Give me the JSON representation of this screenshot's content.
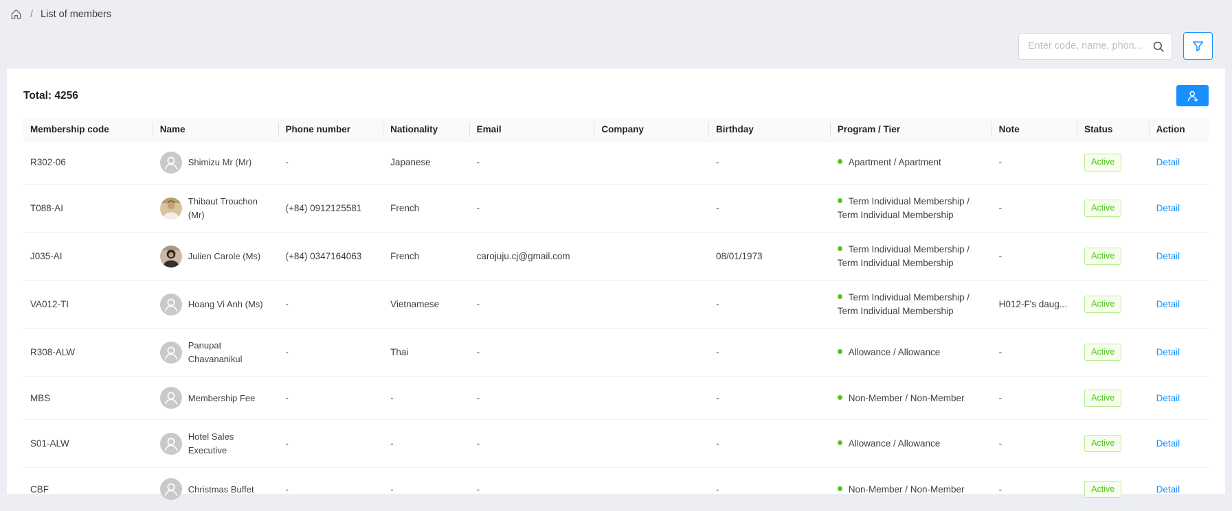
{
  "breadcrumb": {
    "separator": "/",
    "current": "List of members"
  },
  "toolbar": {
    "search_placeholder": "Enter code, name, phon...",
    "search_icon": "magnifier",
    "filter_icon": "funnel"
  },
  "summary": {
    "total": "Total: 4256"
  },
  "actions": {
    "add_member_icon": "user-plus"
  },
  "colors": {
    "accent_blue": "#1890ff",
    "status_green": "#52c41a",
    "tag_background": "#f6ffed",
    "tag_border": "#b7eb8f",
    "page_background": "#eceef3"
  },
  "table": {
    "columns": [
      "Membership code",
      "Name",
      "Phone number",
      "Nationality",
      "Email",
      "Company",
      "Birthday",
      "Program / Tier",
      "Note",
      "Status",
      "Action"
    ],
    "rows": [
      {
        "code": "R302-06",
        "avatar": "placeholder",
        "name": "Shimizu Mr (Mr)",
        "phone": "-",
        "nationality": "Japanese",
        "email": "-",
        "company": "",
        "birthday": "-",
        "program": "Apartment / Apartment",
        "note": "-",
        "status": "Active",
        "action": "Detail"
      },
      {
        "code": "T088-AI",
        "avatar": "photo-man",
        "name": "Thibaut Trouchon (Mr)",
        "phone": "(+84) 0912125581",
        "nationality": "French",
        "email": "-",
        "company": "",
        "birthday": "-",
        "program": "Term Individual Membership / Term Individual Membership",
        "note": "-",
        "status": "Active",
        "action": "Detail"
      },
      {
        "code": "J035-AI",
        "avatar": "photo-woman",
        "name": "Julien Carole (Ms)",
        "phone": "(+84) 0347164063",
        "nationality": "French",
        "email": "carojuju.cj@gmail.com",
        "company": "",
        "birthday": "08/01/1973",
        "program": "Term Individual Membership / Term Individual Membership",
        "note": "-",
        "status": "Active",
        "action": "Detail"
      },
      {
        "code": "VA012-TI",
        "avatar": "placeholder",
        "name": "Hoang Vi Anh (Ms)",
        "phone": "-",
        "nationality": "Vietnamese",
        "email": "-",
        "company": "",
        "birthday": "-",
        "program": "Term Individual Membership / Term Individual Membership",
        "note": "H012-F's daug...",
        "status": "Active",
        "action": "Detail"
      },
      {
        "code": "R308-ALW",
        "avatar": "placeholder",
        "name": "Panupat Chavananikul",
        "phone": "-",
        "nationality": "Thai",
        "email": "-",
        "company": "",
        "birthday": "-",
        "program": "Allowance / Allowance",
        "note": "-",
        "status": "Active",
        "action": "Detail"
      },
      {
        "code": "MBS",
        "avatar": "placeholder",
        "name": "Membership Fee",
        "phone": "-",
        "nationality": "-",
        "email": "-",
        "company": "",
        "birthday": "-",
        "program": "Non-Member / Non-Member",
        "note": "-",
        "status": "Active",
        "action": "Detail"
      },
      {
        "code": "S01-ALW",
        "avatar": "placeholder",
        "name": "Hotel Sales Executive",
        "phone": "-",
        "nationality": "-",
        "email": "-",
        "company": "",
        "birthday": "-",
        "program": "Allowance / Allowance",
        "note": "-",
        "status": "Active",
        "action": "Detail"
      },
      {
        "code": "CBF",
        "avatar": "placeholder",
        "name": "Christmas Buffet",
        "phone": "-",
        "nationality": "-",
        "email": "-",
        "company": "",
        "birthday": "-",
        "program": "Non-Member / Non-Member",
        "note": "-",
        "status": "Active",
        "action": "Detail"
      }
    ]
  }
}
